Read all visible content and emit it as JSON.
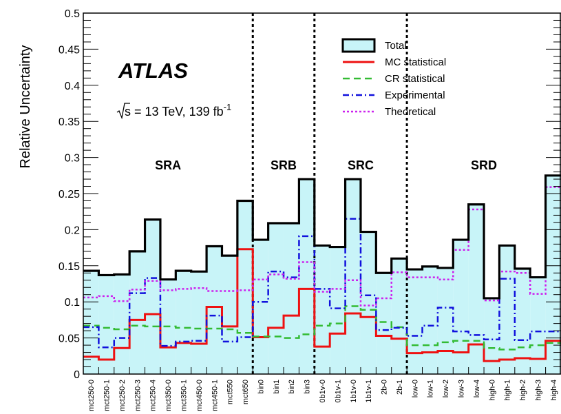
{
  "chart_data": {
    "type": "histogram-step",
    "ylabel": "Relative Uncertainty",
    "ylim": [
      0,
      0.5
    ],
    "yticks": [
      "0",
      "0.05",
      "0.1",
      "0.15",
      "0.2",
      "0.25",
      "0.3",
      "0.35",
      "0.4",
      "0.45",
      "0.5"
    ],
    "categories": [
      "mct250-0",
      "mct250-1",
      "mct250-2",
      "mct250-3",
      "mct250-4",
      "mct350-0",
      "mct350-1",
      "mct450-0",
      "mct450-1",
      "mct550",
      "mct650",
      "bin0",
      "bin1",
      "bin2",
      "bin3",
      "0b1v-0",
      "0b1v-1",
      "1b1v-0",
      "1b1v-1",
      "2b-0",
      "2b-1",
      "low-0",
      "low-1",
      "low-2",
      "low-3",
      "low-4",
      "high-0",
      "high-1",
      "high-2",
      "high-3",
      "high-4"
    ],
    "regions": [
      {
        "label": "SRA",
        "start": 0,
        "end": 10
      },
      {
        "label": "SRB",
        "start": 11,
        "end": 14
      },
      {
        "label": "SRC",
        "start": 15,
        "end": 20
      },
      {
        "label": "SRD",
        "start": 21,
        "end": 30
      }
    ],
    "series": [
      {
        "name": "Total",
        "color": "#000000",
        "fill": "#c8f4f8",
        "style": "solid",
        "values": [
          0.143,
          0.137,
          0.138,
          0.17,
          0.214,
          0.131,
          0.143,
          0.142,
          0.177,
          0.164,
          0.24,
          0.186,
          0.209,
          0.209,
          0.27,
          0.178,
          0.176,
          0.27,
          0.197,
          0.14,
          0.16,
          0.145,
          0.149,
          0.147,
          0.186,
          0.235,
          0.105,
          0.178,
          0.146,
          0.134,
          0.275
        ]
      },
      {
        "name": "MC statistical",
        "color": "#ee1111",
        "style": "solid",
        "values": [
          0.024,
          0.02,
          0.036,
          0.075,
          0.083,
          0.037,
          0.043,
          0.042,
          0.093,
          0.066,
          0.173,
          0.051,
          0.064,
          0.081,
          0.118,
          0.038,
          0.056,
          0.084,
          0.079,
          0.053,
          0.049,
          0.029,
          0.03,
          0.032,
          0.03,
          0.041,
          0.018,
          0.02,
          0.022,
          0.021,
          0.046
        ]
      },
      {
        "name": "CR statistical",
        "color": "#33bb33",
        "style": "dashed",
        "values": [
          0.067,
          0.064,
          0.062,
          0.067,
          0.066,
          0.066,
          0.064,
          0.063,
          0.063,
          0.062,
          0.057,
          0.052,
          0.052,
          0.05,
          0.055,
          0.067,
          0.07,
          0.094,
          0.089,
          0.072,
          0.065,
          0.04,
          0.04,
          0.044,
          0.046,
          0.046,
          0.036,
          0.034,
          0.037,
          0.04,
          0.043
        ]
      },
      {
        "name": "Experimental",
        "color": "#1111dd",
        "style": "dashdot",
        "values": [
          0.065,
          0.037,
          0.05,
          0.112,
          0.133,
          0.039,
          0.045,
          0.046,
          0.081,
          0.045,
          0.051,
          0.1,
          0.142,
          0.134,
          0.191,
          0.118,
          0.091,
          0.215,
          0.109,
          0.061,
          0.064,
          0.053,
          0.067,
          0.092,
          0.059,
          0.054,
          0.048,
          0.132,
          0.047,
          0.059,
          0.059
        ]
      },
      {
        "name": "Theoretical",
        "color": "#cc22ee",
        "style": "dotted",
        "values": [
          0.106,
          0.108,
          0.101,
          0.117,
          0.129,
          0.116,
          0.118,
          0.119,
          0.115,
          0.115,
          0.116,
          0.131,
          0.138,
          0.132,
          0.155,
          0.114,
          0.118,
          0.13,
          0.095,
          0.105,
          0.141,
          0.134,
          0.134,
          0.131,
          0.172,
          0.228,
          0.102,
          0.142,
          0.14,
          0.111,
          0.259
        ]
      }
    ],
    "legend_position": "top-right",
    "annotations": {
      "experiment": "ATLAS",
      "energy_prefix": "s = 13 TeV, 139 fb",
      "lumi_exponent": "-1"
    }
  }
}
